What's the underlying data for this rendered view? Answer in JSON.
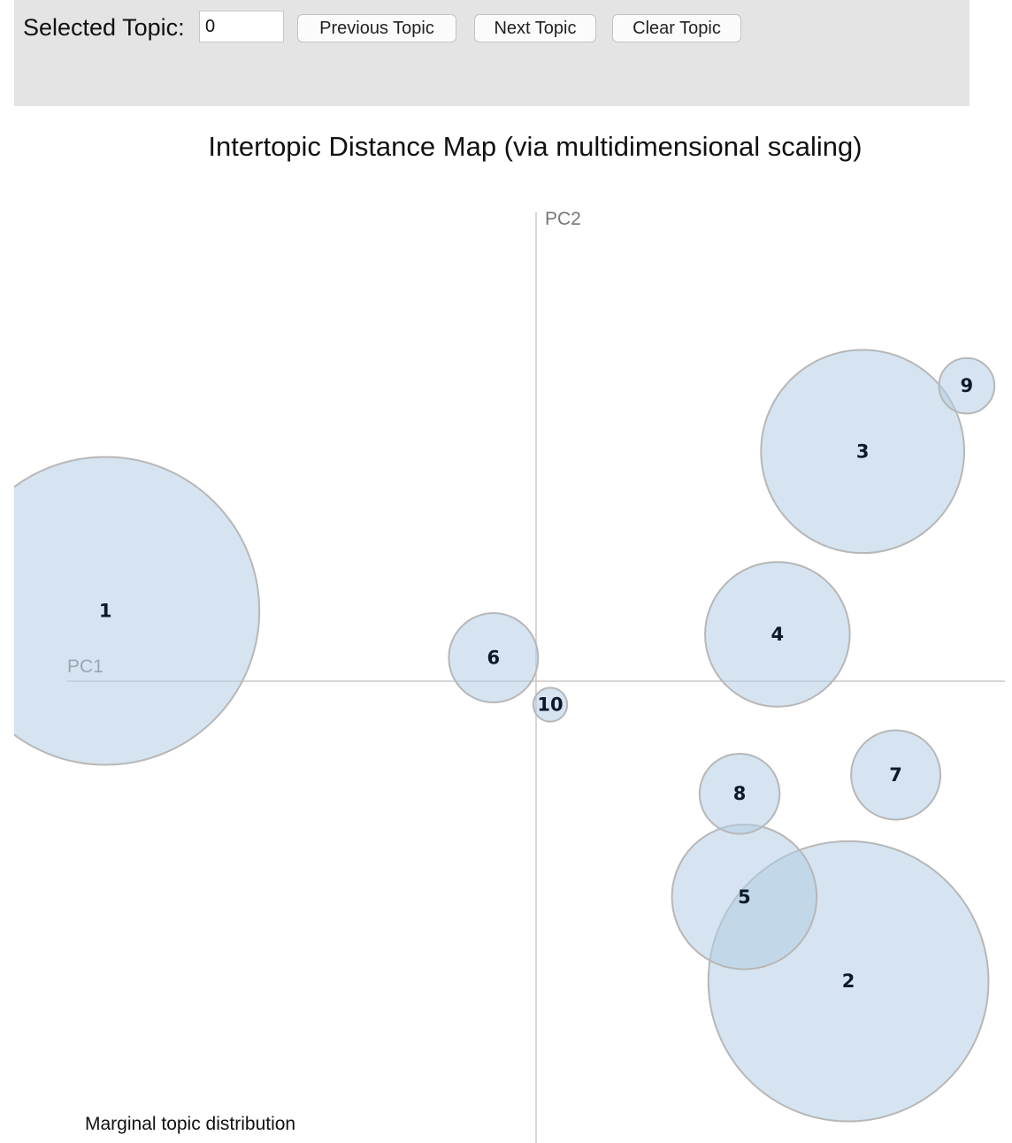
{
  "controls": {
    "selected_topic_label": "Selected Topic:",
    "selected_topic_value": "0",
    "previous_label": "Previous Topic",
    "next_label": "Next Topic",
    "clear_label": "Clear Topic"
  },
  "chart_data": {
    "type": "scatter",
    "title": "Intertopic Distance Map (via multidimensional scaling)",
    "xlabel": "PC1",
    "ylabel": "PC2",
    "xlim": [
      -1,
      1
    ],
    "ylim": [
      -1,
      1
    ],
    "grid": false,
    "bubble_fill": "#b3cde3",
    "bubble_stroke": "#b7b7b7",
    "axis_color": "#c8c8c8",
    "topics": [
      {
        "label": "1",
        "x": -0.91,
        "y": 0.15,
        "size": 1.0
      },
      {
        "label": "2",
        "x": 0.66,
        "y": -0.64,
        "size": 0.91
      },
      {
        "label": "3",
        "x": 0.69,
        "y": 0.49,
        "size": 0.66
      },
      {
        "label": "4",
        "x": 0.51,
        "y": 0.1,
        "size": 0.47
      },
      {
        "label": "5",
        "x": 0.44,
        "y": -0.46,
        "size": 0.47
      },
      {
        "label": "6",
        "x": -0.09,
        "y": 0.05,
        "size": 0.29
      },
      {
        "label": "7",
        "x": 0.76,
        "y": -0.2,
        "size": 0.29
      },
      {
        "label": "8",
        "x": 0.43,
        "y": -0.24,
        "size": 0.26
      },
      {
        "label": "9",
        "x": 0.91,
        "y": 0.63,
        "size": 0.18
      },
      {
        "label": "10",
        "x": 0.03,
        "y": -0.05,
        "size": 0.11
      }
    ]
  },
  "legend": {
    "marginal_label": "Marginal topic distribution"
  }
}
